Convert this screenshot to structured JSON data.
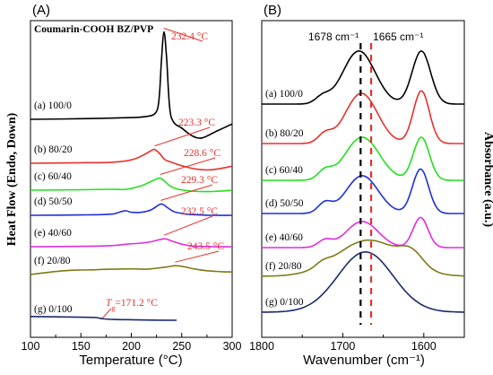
{
  "chart_data": [
    {
      "type": "line",
      "panel_label": "(A)",
      "title": "Coumarin-COOH BZ/PVP",
      "xlabel": "Temperature (°C)",
      "ylabel": "Heat Flow (Endo, Down)",
      "xlim": [
        100,
        300
      ],
      "x_ticks": [
        "100",
        "150",
        "200",
        "250",
        "300"
      ],
      "series": [
        {
          "name": "(a) 100/0",
          "color": "#000000",
          "peak_label": "232.4 °C",
          "x": [
            100,
            150,
            200,
            215,
            222,
            226,
            228,
            230,
            232.4,
            235,
            238,
            242,
            250,
            260,
            270,
            285,
            300
          ],
          "y": [
            0,
            0.01,
            0.03,
            0.05,
            0.08,
            0.18,
            0.45,
            1.05,
            1.5,
            1.05,
            0.2,
            -0.05,
            -0.15,
            -0.28,
            -0.32,
            -0.2,
            -0.08
          ]
        },
        {
          "name": "(b) 80/20",
          "color": "#e8302a",
          "peak_label": "223.3 °C",
          "x": [
            100,
            150,
            180,
            195,
            205,
            215,
            220,
            223.3,
            228,
            233,
            240,
            250,
            265,
            280,
            300
          ],
          "y": [
            0,
            0.01,
            0.02,
            0.05,
            0.1,
            0.2,
            0.26,
            0.28,
            0.2,
            0.08,
            0.02,
            -0.05,
            -0.12,
            -0.13,
            -0.06
          ]
        },
        {
          "name": "(c) 60/40",
          "color": "#22e01c",
          "peak_label": "228.6 °C",
          "x": [
            100,
            150,
            180,
            195,
            210,
            220,
            225,
            228.6,
            232,
            238,
            245,
            260,
            280,
            300
          ],
          "y": [
            0,
            0.01,
            0.02,
            0.02,
            0.1,
            0.2,
            0.25,
            0.27,
            0.22,
            0.1,
            0.03,
            -0.02,
            -0.03,
            0.0
          ]
        },
        {
          "name": "(d) 50/50",
          "color": "#1f2fd6",
          "peak_label": "229.3 °C",
          "x": [
            100,
            150,
            180,
            190,
            195,
            200,
            210,
            220,
            229.3,
            236,
            242,
            250,
            260,
            280,
            300
          ],
          "y": [
            0,
            0.01,
            0.03,
            0.1,
            0.12,
            0.08,
            0.08,
            0.15,
            0.3,
            0.2,
            0.1,
            0.05,
            0.02,
            0.0,
            0.0
          ]
        },
        {
          "name": "(e) 40/60",
          "color": "#e02ce0",
          "peak_label": "232.5 °C",
          "x": [
            100,
            150,
            180,
            195,
            210,
            220,
            232.5,
            240,
            250,
            260,
            280,
            300
          ],
          "y": [
            0,
            0.01,
            0.03,
            0.07,
            0.1,
            0.14,
            0.22,
            0.16,
            0.07,
            0.02,
            0.0,
            0.0
          ]
        },
        {
          "name": "(f) 20/80",
          "color": "#7e7a16",
          "peak_label": "243.5 °C",
          "x": [
            100,
            115,
            130,
            145,
            160,
            180,
            200,
            215,
            225,
            235,
            243.5,
            252,
            262,
            275,
            290,
            300
          ],
          "y": [
            0,
            0.06,
            0.11,
            0.14,
            0.15,
            0.17,
            0.18,
            0.17,
            0.2,
            0.24,
            0.28,
            0.25,
            0.18,
            0.12,
            0.09,
            0.08
          ]
        },
        {
          "name": "(g) 0/100",
          "color": "#1a2a6c",
          "peak_label": "",
          "x": [
            100,
            150,
            165,
            171.2,
            180,
            200,
            220,
            245
          ],
          "y": [
            0.08,
            0.06,
            0.05,
            0.02,
            0.0,
            -0.01,
            -0.02,
            -0.025
          ]
        }
      ],
      "annotations": [
        {
          "text_prefix": "T",
          "text_sub": "g",
          "text_suffix": "=171.2 °C",
          "x": 171.2
        }
      ],
      "legend": "inline-left",
      "grid": false
    },
    {
      "type": "line",
      "panel_label": "(B)",
      "title": "",
      "xlabel": "Wavenumber (cm⁻¹)",
      "ylabel": "Absorbance (a.u.)",
      "xlim": [
        1800,
        1550
      ],
      "x_ticks": [
        "1800",
        "1700",
        "1600"
      ],
      "reference_lines": [
        {
          "x": 1678,
          "color": "#000000",
          "label": "1678 cm⁻¹"
        },
        {
          "x": 1665,
          "color": "#e8302a",
          "label": "1665 cm⁻¹"
        }
      ],
      "series": [
        {
          "name": "(a) 100/0",
          "color": "#000000"
        },
        {
          "name": "(b) 80/20",
          "color": "#e8302a"
        },
        {
          "name": "(c) 60/40",
          "color": "#22e01c"
        },
        {
          "name": "(d) 50/50",
          "color": "#1f2fd6"
        },
        {
          "name": "(e) 40/60",
          "color": "#e02ce0"
        },
        {
          "name": "(f) 20/80",
          "color": "#7e7a16"
        },
        {
          "name": "(g) 0/100",
          "color": "#1a2a6c"
        }
      ],
      "legend": "inline-left",
      "grid": false
    }
  ]
}
